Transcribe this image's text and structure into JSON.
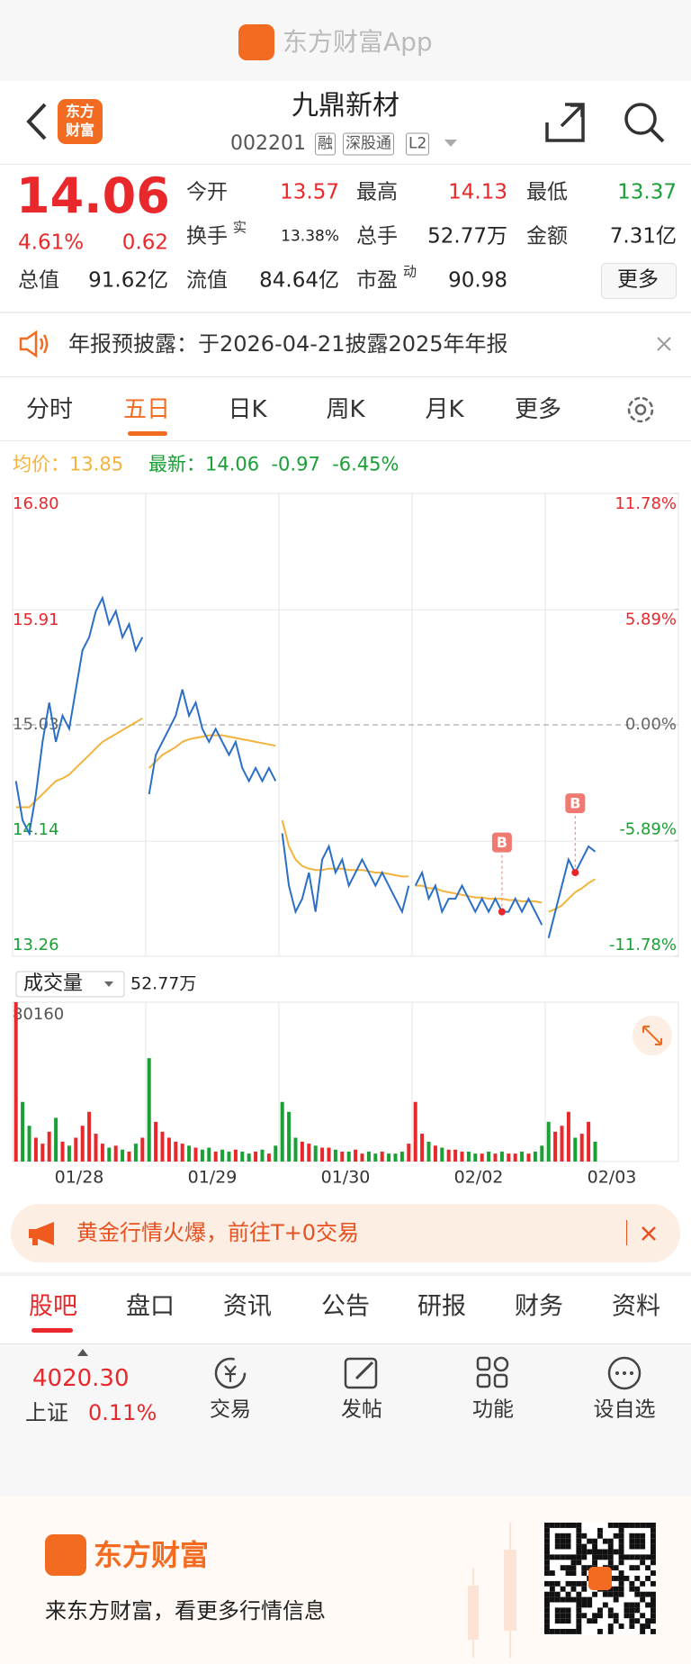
{
  "app_bar": {
    "title": "东方财富App"
  },
  "header": {
    "logo_lines": [
      "东方",
      "财富"
    ],
    "title": "九鼎新材",
    "code": "002201",
    "tags": [
      "融",
      "深股通",
      "L2"
    ]
  },
  "quote": {
    "price": "14.06",
    "change_pct": "4.61%",
    "change": "0.62",
    "stats": [
      {
        "label": "今开",
        "value": "13.57"
      },
      {
        "label": "最高",
        "value": "14.13"
      },
      {
        "label": "最低",
        "value": "13.37"
      },
      {
        "label": "换手",
        "sup": "实",
        "value": "13.38%"
      },
      {
        "label": "总手",
        "value": "52.77万"
      },
      {
        "label": "金额",
        "value": "7.31亿"
      },
      {
        "label": "总值",
        "value": "91.62亿"
      },
      {
        "label": "流值",
        "value": "84.64亿"
      },
      {
        "label": "市盈",
        "sup": "动",
        "value": "90.98"
      }
    ],
    "more": "更多"
  },
  "notice": {
    "text": "年报预披露：于2026-04-21披露2025年年报"
  },
  "chart_tabs": [
    "分时",
    "五日",
    "日K",
    "周K",
    "月K",
    "更多"
  ],
  "legend": {
    "avg_label": "均价：",
    "avg": "13.85",
    "latest_label": "最新：",
    "latest": "14.06",
    "change": "-0.97",
    "change_pct": "-6.45%"
  },
  "chart_data": [
    {
      "type": "line",
      "series": [
        {
          "color": "#2b6ec8",
          "values": [
            14.6,
            14.3,
            14.2,
            14.5,
            14.9,
            15.2,
            14.9,
            15.1,
            15.0,
            15.3,
            15.6,
            15.7,
            15.9,
            16.0,
            15.8,
            15.9,
            15.7,
            15.8,
            15.6,
            15.7,
            14.5,
            14.8,
            14.9,
            15.0,
            15.1,
            15.3,
            15.1,
            15.2,
            15.0,
            14.9,
            15.0,
            14.9,
            14.8,
            14.9,
            14.7,
            14.6,
            14.7,
            14.6,
            14.7,
            14.6,
            14.2,
            13.8,
            13.6,
            13.7,
            13.9,
            13.6,
            14.0,
            14.1,
            13.9,
            14.0,
            13.8,
            13.9,
            14.0,
            13.9,
            13.8,
            13.9,
            13.8,
            13.7,
            13.6,
            13.8,
            13.8,
            13.9,
            13.7,
            13.8,
            13.6,
            13.7,
            13.7,
            13.8,
            13.7,
            13.6,
            13.7,
            13.6,
            13.7,
            13.6,
            13.6,
            13.7,
            13.6,
            13.7,
            13.6,
            13.5,
            13.4,
            13.6,
            13.8,
            14.0,
            13.9,
            14.0,
            14.1,
            14.06
          ]
        },
        {
          "color": "#f2b33d",
          "values": [
            14.4,
            14.4,
            14.4,
            14.45,
            14.5,
            14.55,
            14.6,
            14.62,
            14.65,
            14.7,
            14.75,
            14.8,
            14.85,
            14.9,
            14.93,
            14.96,
            14.99,
            15.02,
            15.05,
            15.08,
            14.7,
            14.75,
            14.8,
            14.83,
            14.86,
            14.9,
            14.92,
            14.93,
            14.94,
            14.95,
            14.95,
            14.95,
            14.94,
            14.93,
            14.92,
            14.91,
            14.9,
            14.89,
            14.88,
            14.87,
            14.3,
            14.1,
            14.0,
            13.95,
            13.93,
            13.92,
            13.92,
            13.93,
            13.93,
            13.93,
            13.92,
            13.92,
            13.92,
            13.91,
            13.9,
            13.9,
            13.89,
            13.88,
            13.87,
            13.87,
            13.8,
            13.8,
            13.78,
            13.78,
            13.76,
            13.75,
            13.74,
            13.73,
            13.72,
            13.71,
            13.71,
            13.7,
            13.7,
            13.7,
            13.69,
            13.69,
            13.68,
            13.68,
            13.68,
            13.67,
            13.6,
            13.62,
            13.65,
            13.7,
            13.75,
            13.78,
            13.82,
            13.85
          ]
        }
      ],
      "ylim": [
        13.26,
        16.8
      ],
      "yticks": [
        {
          "value": 16.8,
          "label": "16.80"
        },
        {
          "value": 15.91,
          "label": "15.91"
        },
        {
          "value": 15.03,
          "label": "15.03"
        },
        {
          "value": 14.14,
          "label": "14.14"
        },
        {
          "value": 13.26,
          "label": "13.26"
        }
      ],
      "y2lim": [
        -11.78,
        11.78
      ],
      "y2ticks": [
        {
          "value": 11.78,
          "label": "11.78%"
        },
        {
          "value": 5.89,
          "label": "5.89%"
        },
        {
          "value": 0,
          "label": "0.00%"
        },
        {
          "value": -5.89,
          "label": "-5.89%"
        },
        {
          "value": -11.78,
          "label": "-11.78%"
        }
      ],
      "annotations": [
        {
          "label": "B",
          "index": 73
        },
        {
          "label": "B",
          "index": 84
        }
      ]
    },
    {
      "type": "bar",
      "title": "成交量",
      "latest": "52.77万",
      "values": [
        80160,
        30000,
        18000,
        12000,
        9000,
        15000,
        22000,
        10000,
        8000,
        12000,
        18000,
        25000,
        14000,
        9000,
        7000,
        8000,
        6000,
        5000,
        9000,
        12000,
        52000,
        20000,
        15000,
        12000,
        10000,
        9000,
        8000,
        7000,
        6000,
        7000,
        5000,
        6000,
        5000,
        6000,
        5000,
        4000,
        5000,
        6000,
        4000,
        8000,
        30000,
        25000,
        12000,
        10000,
        9000,
        8000,
        7000,
        7000,
        6000,
        5000,
        5000,
        6000,
        4000,
        5000,
        4000,
        5000,
        4000,
        4000,
        5000,
        9000,
        30000,
        14000,
        10000,
        8000,
        7000,
        6000,
        6000,
        5000,
        5000,
        4000,
        4000,
        5000,
        4000,
        5000,
        4000,
        4000,
        5000,
        4000,
        5000,
        8000,
        20000,
        15000,
        18000,
        25000,
        12000,
        14000,
        20000,
        10000
      ],
      "up_color": "#e8282b",
      "down_color": "#1aa035",
      "ylim": [
        0,
        80160
      ],
      "yticks": [
        80160
      ],
      "x_labels": [
        "01/28",
        "01/29",
        "01/30",
        "02/02",
        "02/03"
      ]
    }
  ],
  "promo": {
    "text": "黄金行情火爆，前往T+0交易"
  },
  "tabs": [
    "股吧",
    "盘口",
    "资讯",
    "公告",
    "研报",
    "财务",
    "资料"
  ],
  "bottom_bar": {
    "index_value": "4020.30",
    "index_name": "上证",
    "index_change": "0.11%",
    "actions": [
      "交易",
      "发帖",
      "功能",
      "设自选"
    ]
  },
  "footer": {
    "brand": "东方财富",
    "slogan": "来东方财富，看更多行情信息"
  }
}
